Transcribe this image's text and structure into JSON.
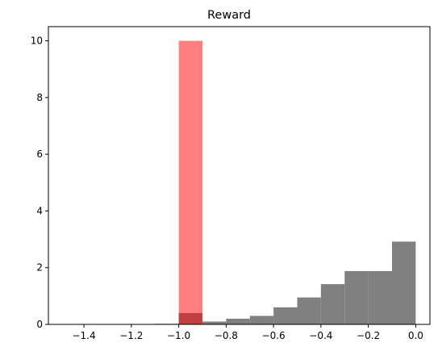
{
  "chart_data": {
    "type": "bar",
    "title": "Reward",
    "xlabel": "",
    "ylabel": "",
    "xlim": [
      -1.55,
      0.06
    ],
    "ylim": [
      0,
      10.5
    ],
    "xticks": [
      -1.4,
      -1.2,
      -1.0,
      -0.8,
      -0.6,
      -0.4,
      -0.2,
      0.0
    ],
    "xtick_labels": [
      "−1.4",
      "−1.2",
      "−1.0",
      "−0.8",
      "−0.6",
      "−0.4",
      "−0.2",
      "0.0"
    ],
    "yticks": [
      0,
      2,
      4,
      6,
      8,
      10
    ],
    "ytick_labels": [
      "0",
      "2",
      "4",
      "6",
      "8",
      "10"
    ],
    "grid": false,
    "series": [
      {
        "color": "#808080",
        "opacity": 1.0,
        "bins": [
          {
            "x0": -1.5,
            "x1": -1.4,
            "value": 0.0
          },
          {
            "x0": -1.4,
            "x1": -1.3,
            "value": 0.0
          },
          {
            "x0": -1.3,
            "x1": -1.2,
            "value": 0.0
          },
          {
            "x0": -1.2,
            "x1": -1.1,
            "value": 0.0
          },
          {
            "x0": -1.1,
            "x1": -1.0,
            "value": 0.02
          },
          {
            "x0": -1.0,
            "x1": -0.9,
            "value": 0.4
          },
          {
            "x0": -0.9,
            "x1": -0.8,
            "value": 0.1
          },
          {
            "x0": -0.8,
            "x1": -0.7,
            "value": 0.2
          },
          {
            "x0": -0.7,
            "x1": -0.6,
            "value": 0.3
          },
          {
            "x0": -0.6,
            "x1": -0.5,
            "value": 0.6
          },
          {
            "x0": -0.5,
            "x1": -0.4,
            "value": 0.95
          },
          {
            "x0": -0.4,
            "x1": -0.3,
            "value": 1.42
          },
          {
            "x0": -0.3,
            "x1": -0.2,
            "value": 1.88
          },
          {
            "x0": -0.2,
            "x1": -0.1,
            "value": 1.88
          },
          {
            "x0": -0.1,
            "x1": 0.0,
            "value": 2.92
          }
        ]
      },
      {
        "color": "#ff0000",
        "opacity": 0.5,
        "bins": [
          {
            "x0": -1.0,
            "x1": -0.9,
            "value": 10.0
          }
        ]
      }
    ]
  }
}
